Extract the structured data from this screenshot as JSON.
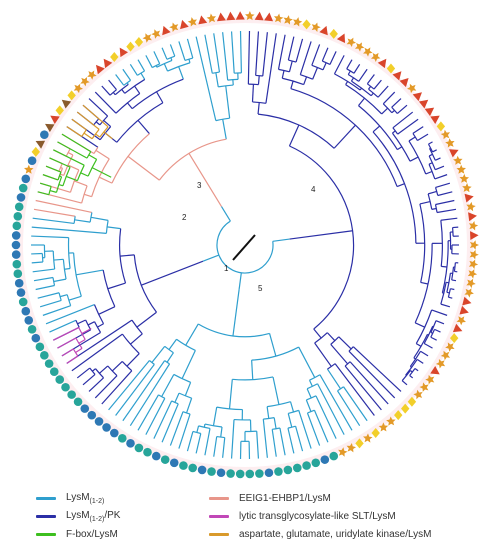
{
  "colors": {
    "lysm": "#2f9fce",
    "lysm_pk": "#2b2fa6",
    "fbox": "#3dbf1f",
    "eeig1": "#e8968a",
    "slt": "#c147b7",
    "kinase": "#d99a2b",
    "circle_teal": "#27a59a",
    "circle_blue": "#2e78b4",
    "star_orange": "#e39a28",
    "triangle_red": "#d9452b",
    "diamond_yellow": "#f2cf2a",
    "triangle_brown": "#8a5a2c"
  },
  "clade_labels": [
    {
      "text": "1"
    },
    {
      "text": "2"
    },
    {
      "text": "3"
    },
    {
      "text": "4"
    },
    {
      "text": "5"
    }
  ],
  "legend": {
    "items": [
      {
        "label": "LysM",
        "sub": "(1-2)",
        "suffix": "",
        "color_key": "lysm"
      },
      {
        "label": "EEIG1-EHBP1/LysM",
        "sub": "",
        "suffix": "",
        "color_key": "eeig1"
      },
      {
        "label": "LysM",
        "sub": "(1-2)",
        "suffix": "/PK",
        "color_key": "lysm_pk"
      },
      {
        "label": "lytic transglycosylate-like SLT/LysM",
        "sub": "",
        "suffix": "",
        "color_key": "slt"
      },
      {
        "label": "F-box/LysM",
        "sub": "",
        "suffix": "",
        "color_key": "fbox"
      },
      {
        "label": "aspartate, glutamate, uridylate kinase/LysM",
        "sub": "",
        "suffix": "",
        "color_key": "kinase"
      }
    ]
  }
}
